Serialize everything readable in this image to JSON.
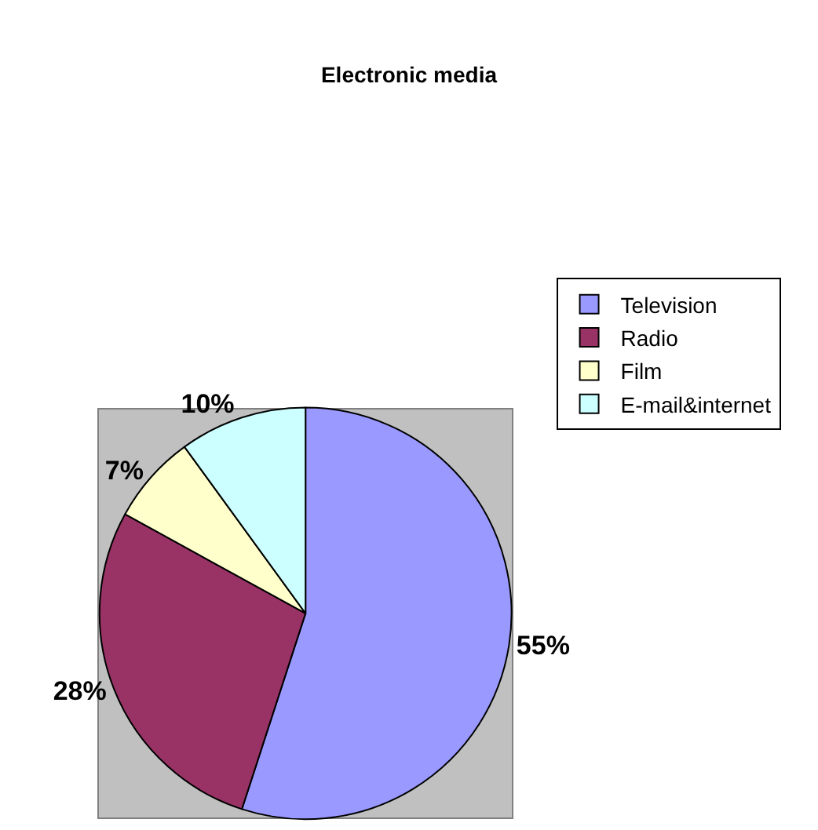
{
  "chart_data": {
    "type": "pie",
    "title": "Electronic media",
    "categories": [
      "Television",
      "Radio",
      "Film",
      "E-mail&internet"
    ],
    "values": [
      55,
      28,
      7,
      10
    ],
    "colors": [
      "#9999ff",
      "#993366",
      "#ffffcc",
      "#ccffff"
    ],
    "value_labels": [
      "55%",
      "28%",
      "7%",
      "10%"
    ],
    "legend": "right"
  }
}
